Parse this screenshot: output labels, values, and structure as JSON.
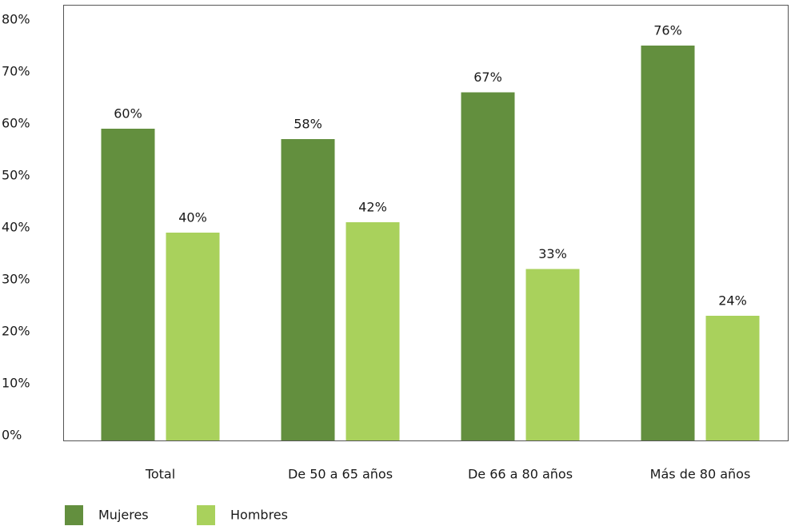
{
  "chart_data": {
    "type": "bar",
    "categories": [
      "Total",
      "De 50 a 65 años",
      "De 66 a 80 años",
      "Más de 80 años"
    ],
    "series": [
      {
        "name": "Mujeres",
        "color": "#638f3e",
        "values": [
          60,
          58,
          67,
          76
        ],
        "value_labels": [
          "60%",
          "58%",
          "67%",
          "76%"
        ]
      },
      {
        "name": "Hombres",
        "color": "#a9d15c",
        "values": [
          40,
          42,
          33,
          24
        ],
        "value_labels": [
          "40%",
          "42%",
          "33%",
          "24%"
        ]
      }
    ],
    "ylim": [
      0,
      80
    ],
    "yticks": [
      {
        "value": 0,
        "label": "0%"
      },
      {
        "value": 10,
        "label": "10%"
      },
      {
        "value": 20,
        "label": "20%"
      },
      {
        "value": 30,
        "label": "30%"
      },
      {
        "value": 40,
        "label": "40%"
      },
      {
        "value": 50,
        "label": "50%"
      },
      {
        "value": 60,
        "label": "60%"
      },
      {
        "value": 70,
        "label": "70%"
      },
      {
        "value": 80,
        "label": "80%"
      }
    ],
    "grid": false,
    "legend": "bottom-left"
  }
}
